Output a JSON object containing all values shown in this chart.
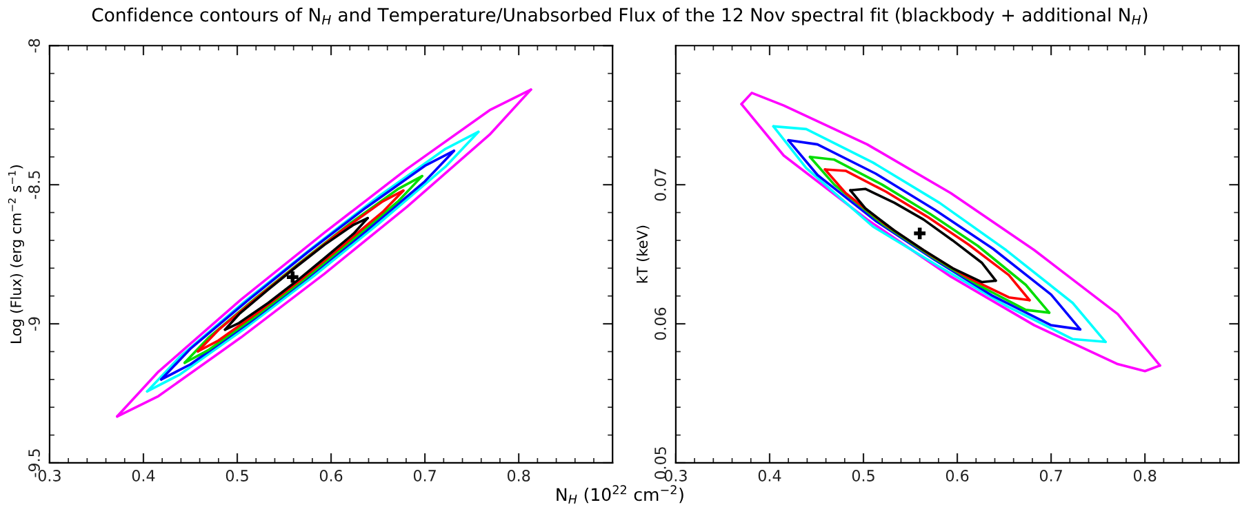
{
  "chart_data": [
    {
      "type": "line",
      "title": "Confidence contours of N$_{H}$ and Temperature/Unabsorbed Flux of the 12 Nov spectral fit (blackbody + additional N$_{H}$)",
      "xlabel": "N$_{H}$ (10$^{22}$ cm$^{−2}$)",
      "ylabel": "Log (Flux) (erg cm$^{−2}$ s$^{−1}$)",
      "xlim": [
        0.3,
        0.9
      ],
      "ylim": [
        -9.5,
        -8
      ],
      "xticks": [
        0.3,
        {
          "value": 0.32,
          "label": null
        },
        {
          "value": 0.34,
          "label": null
        },
        {
          "value": 0.36,
          "label": null
        },
        {
          "value": 0.38,
          "label": null
        },
        0.4,
        {
          "value": 0.42,
          "label": null
        },
        {
          "value": 0.44,
          "label": null
        },
        {
          "value": 0.46,
          "label": null
        },
        {
          "value": 0.48,
          "label": null
        },
        0.5,
        {
          "value": 0.52,
          "label": null
        },
        {
          "value": 0.54,
          "label": null
        },
        {
          "value": 0.56,
          "label": null
        },
        {
          "value": 0.58,
          "label": null
        },
        0.6,
        {
          "value": 0.62,
          "label": null
        },
        {
          "value": 0.64,
          "label": null
        },
        {
          "value": 0.66,
          "label": null
        },
        {
          "value": 0.68,
          "label": null
        },
        0.7,
        {
          "value": 0.72,
          "label": null
        },
        {
          "value": 0.74,
          "label": null
        },
        {
          "value": 0.76,
          "label": null
        },
        {
          "value": 0.78,
          "label": null
        },
        0.8,
        {
          "value": 0.82,
          "label": null
        },
        {
          "value": 0.84,
          "label": null
        },
        {
          "value": 0.86,
          "label": null
        },
        {
          "value": 0.88,
          "label": null
        }
      ],
      "yticks": [
        -9.5,
        {
          "value": -9.4,
          "label": null
        },
        {
          "value": -9.3,
          "label": null
        },
        {
          "value": -9.2,
          "label": null
        },
        {
          "value": -9.1,
          "label": null
        },
        -9,
        {
          "value": -8.9,
          "label": null
        },
        {
          "value": -8.8,
          "label": null
        },
        {
          "value": -8.7,
          "label": null
        },
        {
          "value": -8.6,
          "label": null
        },
        -8.5,
        {
          "value": -8.4,
          "label": null
        },
        {
          "value": -8.3,
          "label": null
        },
        {
          "value": -8.2,
          "label": null
        },
        {
          "value": -8.1,
          "label": null
        },
        -8
      ],
      "grid": false,
      "legend": false,
      "marker": "none",
      "line_style": "solid",
      "series": [
        {
          "type": "line",
          "color": "#ff00ff",
          "x": [
            0.372,
            0.416,
            0.504,
            0.593,
            0.681,
            0.769,
            0.813
          ],
          "values": [
            -9.333,
            -9.172,
            -8.913,
            -8.672,
            -8.443,
            -8.232,
            -8.158
          ]
        },
        {
          "type": "line",
          "color": "#ff00ff",
          "x": [
            0.372,
            0.416,
            0.504,
            0.593,
            0.681,
            0.769,
            0.813
          ],
          "values": [
            -9.333,
            -9.26,
            -9.049,
            -8.82,
            -8.579,
            -8.32,
            -8.158
          ]
        },
        {
          "type": "line",
          "color": "#00ffff",
          "x": [
            0.404,
            0.439,
            0.51,
            0.581,
            0.651,
            0.722,
            0.757
          ],
          "values": [
            -9.243,
            -9.118,
            -8.914,
            -8.724,
            -8.541,
            -8.371,
            -8.31
          ]
        },
        {
          "type": "line",
          "color": "#00ffff",
          "x": [
            0.404,
            0.439,
            0.51,
            0.581,
            0.651,
            0.722,
            0.757
          ],
          "values": [
            -9.243,
            -9.182,
            -9.012,
            -8.83,
            -8.639,
            -8.435,
            -8.31
          ]
        },
        {
          "type": "line",
          "color": "#0000ff",
          "x": [
            0.419,
            0.45,
            0.513,
            0.575,
            0.637,
            0.7,
            0.731
          ],
          "values": [
            -9.2,
            -9.09,
            -8.911,
            -8.743,
            -8.583,
            -8.432,
            -8.378
          ]
        },
        {
          "type": "line",
          "color": "#0000ff",
          "x": [
            0.419,
            0.45,
            0.513,
            0.575,
            0.637,
            0.7,
            0.731
          ],
          "values": [
            -9.2,
            -9.146,
            -8.995,
            -8.835,
            -8.667,
            -8.488,
            -8.378
          ]
        },
        {
          "type": "line",
          "color": "#00dd00",
          "x": [
            0.444,
            0.469,
            0.52,
            0.571,
            0.621,
            0.672,
            0.697
          ],
          "values": [
            -9.14,
            -9.051,
            -8.906,
            -8.769,
            -8.637,
            -8.514,
            -8.469
          ]
        },
        {
          "type": "line",
          "color": "#00dd00",
          "x": [
            0.444,
            0.469,
            0.52,
            0.571,
            0.621,
            0.672,
            0.697
          ],
          "values": [
            -9.14,
            -9.095,
            -8.972,
            -8.841,
            -8.703,
            -8.558,
            -8.469
          ]
        },
        {
          "type": "line",
          "color": "#ff0000",
          "x": [
            0.458,
            0.48,
            0.524,
            0.568,
            0.611,
            0.655,
            0.677
          ],
          "values": [
            -9.099,
            -9.022,
            -8.898,
            -8.779,
            -8.666,
            -8.56,
            -8.521
          ]
        },
        {
          "type": "line",
          "color": "#ff0000",
          "x": [
            0.458,
            0.48,
            0.524,
            0.568,
            0.611,
            0.655,
            0.677
          ],
          "values": [
            -9.099,
            -9.06,
            -8.954,
            -8.841,
            -8.722,
            -8.598,
            -8.521
          ]
        },
        {
          "type": "line",
          "color": "#000000",
          "x": [
            0.487,
            0.502,
            0.533,
            0.563,
            0.593,
            0.624,
            0.639
          ],
          "values": [
            -9.021,
            -8.965,
            -8.877,
            -8.795,
            -8.716,
            -8.644,
            -8.62
          ]
        },
        {
          "type": "line",
          "color": "#000000",
          "x": [
            0.487,
            0.502,
            0.533,
            0.563,
            0.593,
            0.624,
            0.639
          ],
          "values": [
            -9.021,
            -8.997,
            -8.925,
            -8.847,
            -8.764,
            -8.676,
            -8.62
          ]
        },
        {
          "type": "scatter",
          "color": "#000000",
          "marker": "cross",
          "x": [
            0.559
          ],
          "values": [
            -8.832
          ]
        }
      ]
    },
    {
      "type": "line",
      "ylabel": "kT (keV)",
      "xlim": [
        0.3,
        0.9
      ],
      "ylim": [
        0.05,
        0.08
      ],
      "xticks": [
        0.3,
        {
          "value": 0.32,
          "label": null
        },
        {
          "value": 0.34,
          "label": null
        },
        {
          "value": 0.36,
          "label": null
        },
        {
          "value": 0.38,
          "label": null
        },
        0.4,
        {
          "value": 0.42,
          "label": null
        },
        {
          "value": 0.44,
          "label": null
        },
        {
          "value": 0.46,
          "label": null
        },
        {
          "value": 0.48,
          "label": null
        },
        0.5,
        {
          "value": 0.52,
          "label": null
        },
        {
          "value": 0.54,
          "label": null
        },
        {
          "value": 0.56,
          "label": null
        },
        {
          "value": 0.58,
          "label": null
        },
        0.6,
        {
          "value": 0.62,
          "label": null
        },
        {
          "value": 0.64,
          "label": null
        },
        {
          "value": 0.66,
          "label": null
        },
        {
          "value": 0.68,
          "label": null
        },
        0.7,
        {
          "value": 0.72,
          "label": null
        },
        {
          "value": 0.74,
          "label": null
        },
        {
          "value": 0.76,
          "label": null
        },
        {
          "value": 0.78,
          "label": null
        },
        0.8,
        {
          "value": 0.82,
          "label": null
        },
        {
          "value": 0.84,
          "label": null
        },
        {
          "value": 0.86,
          "label": null
        },
        {
          "value": 0.88,
          "label": null
        }
      ],
      "yticks": [
        0.05,
        {
          "value": 0.052,
          "label": null
        },
        {
          "value": 0.054,
          "label": null
        },
        {
          "value": 0.056,
          "label": null
        },
        {
          "value": 0.058,
          "label": null
        },
        0.06,
        {
          "value": 0.062,
          "label": null
        },
        {
          "value": 0.064,
          "label": null
        },
        {
          "value": 0.066,
          "label": null
        },
        {
          "value": 0.068,
          "label": null
        },
        0.07,
        {
          "value": 0.072,
          "label": null
        },
        {
          "value": 0.074,
          "label": null
        },
        {
          "value": 0.076,
          "label": null
        },
        {
          "value": 0.078,
          "label": null
        }
      ],
      "grid": false,
      "legend": false,
      "marker": "none",
      "line_style": "solid",
      "series": [
        {
          "type": "line",
          "color": "#ff00ff",
          "x": [
            0.37,
            0.381,
            0.415,
            0.504,
            0.593,
            0.682,
            0.771,
            0.816
          ],
          "values": [
            0.0758,
            0.0766,
            0.0757,
            0.0729,
            0.0694,
            0.0653,
            0.0607,
            0.057
          ]
        },
        {
          "type": "line",
          "color": "#ff00ff",
          "x": [
            0.37,
            0.415,
            0.504,
            0.593,
            0.682,
            0.771,
            0.8,
            0.816
          ],
          "values": [
            0.0758,
            0.0721,
            0.0675,
            0.0634,
            0.0599,
            0.0571,
            0.0566,
            0.057
          ]
        },
        {
          "type": "line",
          "color": "#00ffff",
          "x": [
            0.404,
            0.439,
            0.51,
            0.581,
            0.652,
            0.723,
            0.758
          ],
          "values": [
            0.0742,
            0.074,
            0.0716,
            0.0687,
            0.0653,
            0.0615,
            0.0587
          ]
        },
        {
          "type": "line",
          "color": "#00ffff",
          "x": [
            0.404,
            0.439,
            0.51,
            0.581,
            0.652,
            0.723,
            0.758
          ],
          "values": [
            0.0742,
            0.0712,
            0.067,
            0.0641,
            0.0613,
            0.0589,
            0.0587
          ]
        },
        {
          "type": "line",
          "color": "#0000ff",
          "x": [
            0.42,
            0.451,
            0.513,
            0.576,
            0.638,
            0.7,
            0.731
          ],
          "values": [
            0.0732,
            0.0729,
            0.0708,
            0.0682,
            0.0654,
            0.0621,
            0.0596
          ]
        },
        {
          "type": "line",
          "color": "#0000ff",
          "x": [
            0.42,
            0.451,
            0.513,
            0.576,
            0.638,
            0.7,
            0.731
          ],
          "values": [
            0.0732,
            0.0707,
            0.0674,
            0.0646,
            0.062,
            0.0599,
            0.0596
          ]
        },
        {
          "type": "line",
          "color": "#00dd00",
          "x": [
            0.443,
            0.469,
            0.52,
            0.571,
            0.622,
            0.673,
            0.698
          ],
          "values": [
            0.072,
            0.0718,
            0.07,
            0.0679,
            0.0656,
            0.0628,
            0.0608
          ]
        },
        {
          "type": "line",
          "color": "#00dd00",
          "x": [
            0.443,
            0.469,
            0.52,
            0.571,
            0.622,
            0.673,
            0.698
          ],
          "values": [
            0.072,
            0.07,
            0.0672,
            0.0649,
            0.0628,
            0.061,
            0.0608
          ]
        },
        {
          "type": "line",
          "color": "#ff0000",
          "x": [
            0.459,
            0.481,
            0.524,
            0.568,
            0.612,
            0.655,
            0.677
          ],
          "values": [
            0.0711,
            0.071,
            0.0695,
            0.0677,
            0.0657,
            0.0635,
            0.0617
          ]
        },
        {
          "type": "line",
          "color": "#ff0000",
          "x": [
            0.459,
            0.481,
            0.524,
            0.568,
            0.612,
            0.655,
            0.677
          ],
          "values": [
            0.0711,
            0.0694,
            0.0671,
            0.0651,
            0.0633,
            0.0619,
            0.0617
          ]
        },
        {
          "type": "line",
          "color": "#000000",
          "x": [
            0.486,
            0.502,
            0.533,
            0.564,
            0.595,
            0.626,
            0.641
          ],
          "values": [
            0.0696,
            0.0697,
            0.0687,
            0.0675,
            0.066,
            0.0644,
            0.0631
          ]
        },
        {
          "type": "line",
          "color": "#000000",
          "x": [
            0.486,
            0.502,
            0.533,
            0.564,
            0.595,
            0.626,
            0.641
          ],
          "values": [
            0.0696,
            0.0683,
            0.0667,
            0.0653,
            0.064,
            0.063,
            0.0631
          ]
        },
        {
          "type": "scatter",
          "color": "#000000",
          "marker": "cross",
          "x": [
            0.56
          ],
          "values": [
            0.0665
          ]
        }
      ]
    }
  ]
}
